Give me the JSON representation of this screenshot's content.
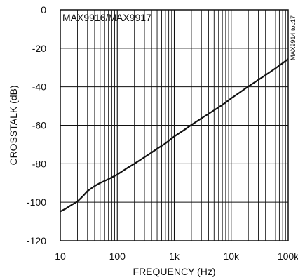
{
  "chart_data": {
    "type": "line",
    "title": "MAX9916/MAX9917",
    "figure_code": "MAX9914 toc17",
    "xlabel": "FREQUENCY (Hz)",
    "ylabel": "CROSSTALK (dB)",
    "x_scale": "log",
    "xlim": [
      10,
      100000
    ],
    "ylim": [
      -120,
      0
    ],
    "grid": true,
    "x_ticks": [
      10,
      100,
      1000,
      10000,
      100000
    ],
    "x_tick_labels": [
      "10",
      "100",
      "1k",
      "10k",
      "100k"
    ],
    "y_ticks": [
      0,
      -20,
      -40,
      -60,
      -80,
      -100,
      -120
    ],
    "y_tick_labels": [
      "0",
      "-20",
      "-40",
      "-60",
      "-80",
      "-100",
      "-120"
    ],
    "series": [
      {
        "x": [
          10,
          12,
          15,
          20,
          25,
          30,
          40,
          50,
          70,
          100,
          150,
          200,
          300,
          400,
          500,
          700,
          1000,
          1500,
          2000,
          3000,
          5000,
          7000,
          10000,
          15000,
          20000,
          30000,
          50000,
          70000,
          100000
        ],
        "y": [
          -104.8,
          -103.6,
          -101.8,
          -99.6,
          -96.8,
          -94.2,
          -91.6,
          -90.0,
          -88.0,
          -85.6,
          -82.2,
          -80.0,
          -76.6,
          -74.2,
          -72.2,
          -69.4,
          -65.8,
          -62.4,
          -59.8,
          -56.4,
          -52.2,
          -49.4,
          -46.0,
          -42.4,
          -39.8,
          -36.4,
          -32.0,
          -29.0,
          -25.6
        ]
      }
    ],
    "colors": {
      "line": "#111111",
      "grid": "#111111",
      "background": "#ffffff"
    }
  }
}
